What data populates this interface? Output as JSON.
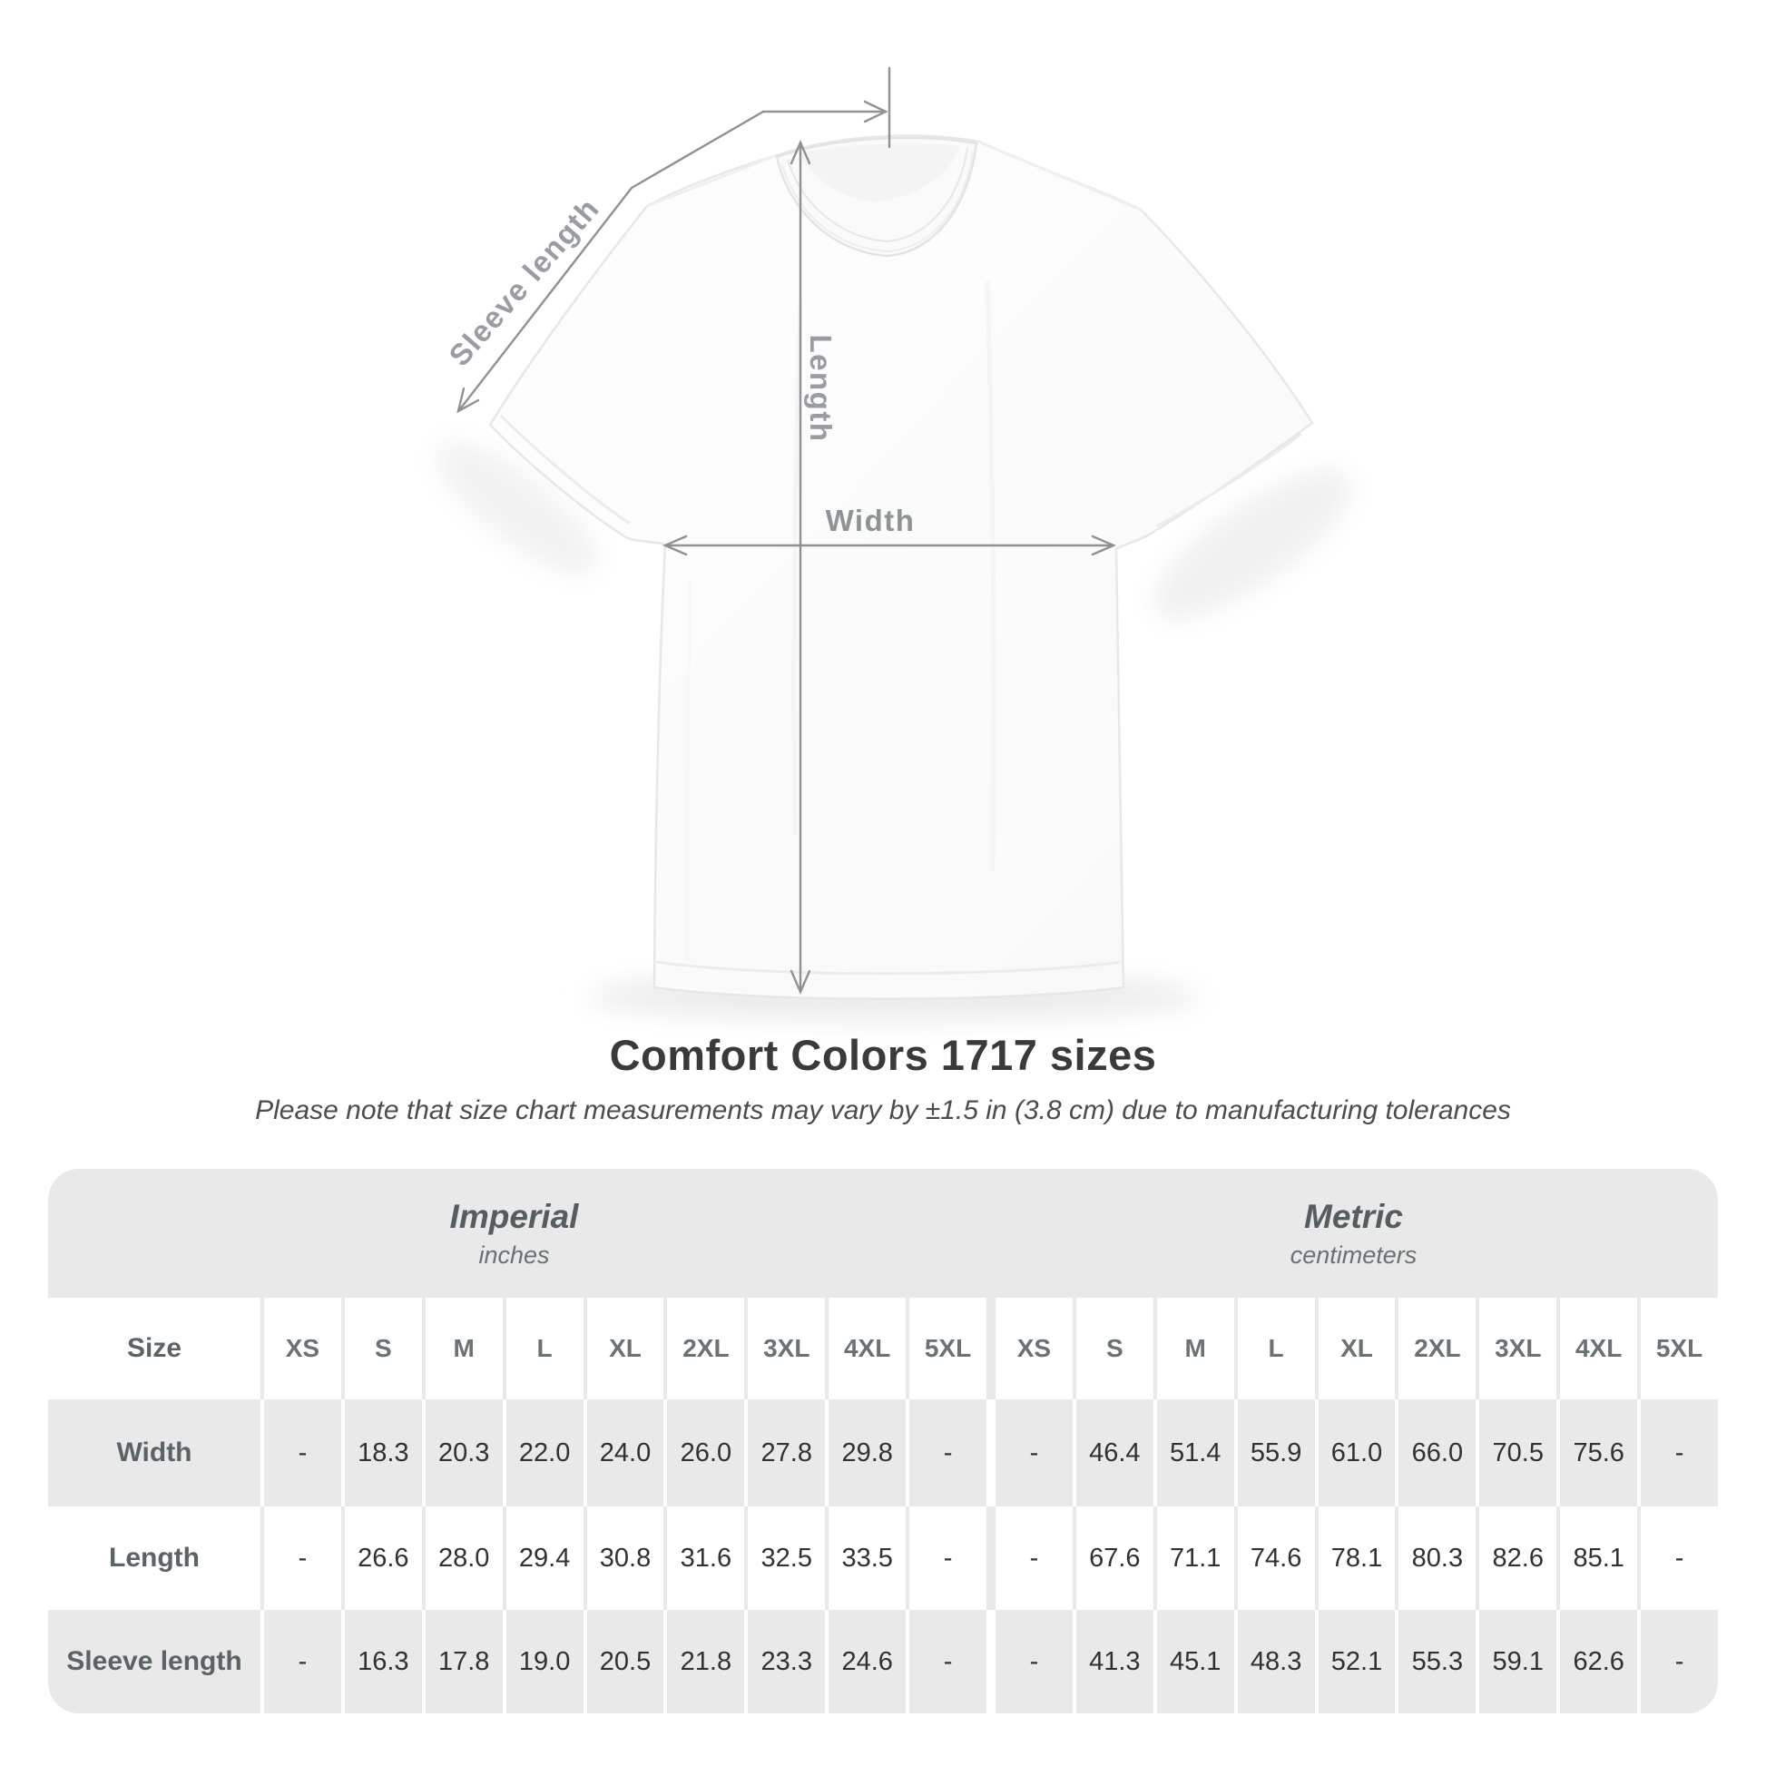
{
  "diagram": {
    "labels": {
      "sleeve": "Sleeve length",
      "length": "Length",
      "width": "Width"
    }
  },
  "title": "Comfort Colors 1717 sizes",
  "subtitle": "Please note that size chart measurements may vary by ±1.5 in (3.8 cm) due to manufacturing tolerances",
  "table": {
    "unit_groups": [
      {
        "name": "Imperial",
        "unit": "inches"
      },
      {
        "name": "Metric",
        "unit": "centimeters"
      }
    ],
    "size_label": "Size",
    "sizes": [
      "XS",
      "S",
      "M",
      "L",
      "XL",
      "2XL",
      "3XL",
      "4XL",
      "5XL"
    ],
    "rows": [
      {
        "label": "Width",
        "imperial": [
          "-",
          "18.3",
          "20.3",
          "22.0",
          "24.0",
          "26.0",
          "27.8",
          "29.8",
          "-"
        ],
        "metric": [
          "-",
          "46.4",
          "51.4",
          "55.9",
          "61.0",
          "66.0",
          "70.5",
          "75.6",
          "-"
        ]
      },
      {
        "label": "Length",
        "imperial": [
          "-",
          "26.6",
          "28.0",
          "29.4",
          "30.8",
          "31.6",
          "32.5",
          "33.5",
          "-"
        ],
        "metric": [
          "-",
          "67.6",
          "71.1",
          "74.6",
          "78.1",
          "80.3",
          "82.6",
          "85.1",
          "-"
        ]
      },
      {
        "label": "Sleeve length",
        "imperial": [
          "-",
          "16.3",
          "17.8",
          "19.0",
          "20.5",
          "21.8",
          "23.3",
          "24.6",
          "-"
        ],
        "metric": [
          "-",
          "41.3",
          "45.1",
          "48.3",
          "52.1",
          "55.3",
          "59.1",
          "62.6",
          "-"
        ]
      }
    ]
  },
  "colors": {
    "table_grey": "#e9e9e9",
    "value_text": "#2f3234",
    "heading_text": "#565d61",
    "measure_line": "#8f9194",
    "diagram_label": "#999ca0"
  }
}
